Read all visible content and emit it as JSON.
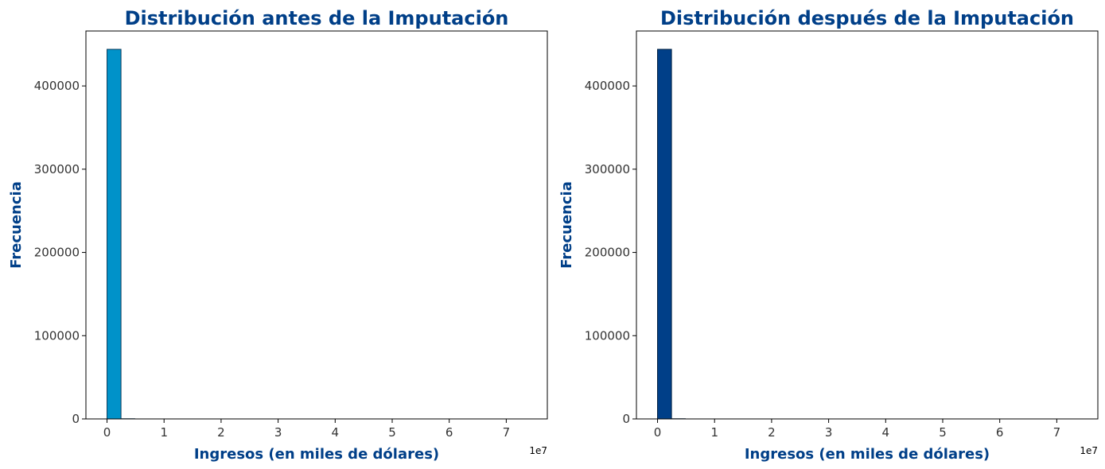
{
  "theme": {
    "title_color": "#003f88",
    "label_color": "#003f88",
    "tick_color": "#333333"
  },
  "chart_data": [
    {
      "type": "bar",
      "title": "Distribución antes de la Imputación",
      "xlabel": "Ingresos (en miles de dólares)",
      "ylabel": "Frecuencia",
      "x_offset_label": "1e7",
      "xlim": [
        -3700000,
        77200000
      ],
      "ylim": [
        0,
        466000
      ],
      "x_ticks": [
        0,
        10000000,
        20000000,
        30000000,
        40000000,
        50000000,
        60000000,
        70000000
      ],
      "x_tick_labels": [
        "0",
        "1",
        "2",
        "3",
        "4",
        "5",
        "6",
        "7"
      ],
      "y_ticks": [
        0,
        100000,
        200000,
        300000,
        400000
      ],
      "y_tick_labels": [
        "0",
        "100000",
        "200000",
        "300000",
        "400000"
      ],
      "bin_edges": [
        0,
        2450000,
        4900000,
        7350000,
        9800000,
        12250000,
        14700000,
        17150000,
        19600000,
        22050000,
        24500000,
        26950000,
        29400000,
        31850000,
        34300000,
        36750000,
        39200000,
        41650000,
        44100000,
        46550000,
        49000000,
        51450000,
        53900000,
        56350000,
        58800000,
        61250000,
        63700000,
        66150000,
        68600000,
        71050000,
        73500000
      ],
      "values": [
        444000,
        400,
        150,
        80,
        50,
        30,
        20,
        15,
        10,
        10,
        8,
        6,
        5,
        4,
        3,
        3,
        2,
        2,
        2,
        2,
        1,
        1,
        1,
        1,
        1,
        1,
        1,
        1,
        1,
        1
      ],
      "bar_color": "#0092c9",
      "edge_color": "#0b3b5c",
      "grid": false
    },
    {
      "type": "bar",
      "title": "Distribución después de la Imputación",
      "xlabel": "Ingresos (en miles de dólares)",
      "ylabel": "Frecuencia",
      "x_offset_label": "1e7",
      "xlim": [
        -3700000,
        77200000
      ],
      "ylim": [
        0,
        466000
      ],
      "x_ticks": [
        0,
        10000000,
        20000000,
        30000000,
        40000000,
        50000000,
        60000000,
        70000000
      ],
      "x_tick_labels": [
        "0",
        "1",
        "2",
        "3",
        "4",
        "5",
        "6",
        "7"
      ],
      "y_ticks": [
        0,
        100000,
        200000,
        300000,
        400000
      ],
      "y_tick_labels": [
        "0",
        "100000",
        "200000",
        "300000",
        "400000"
      ],
      "bin_edges": [
        0,
        2450000,
        4900000,
        7350000,
        9800000,
        12250000,
        14700000,
        17150000,
        19600000,
        22050000,
        24500000,
        26950000,
        29400000,
        31850000,
        34300000,
        36750000,
        39200000,
        41650000,
        44100000,
        46550000,
        49000000,
        51450000,
        53900000,
        56350000,
        58800000,
        61250000,
        63700000,
        66150000,
        68600000,
        71050000,
        73500000
      ],
      "values": [
        444000,
        400,
        150,
        80,
        50,
        30,
        20,
        15,
        10,
        10,
        8,
        6,
        5,
        4,
        3,
        3,
        2,
        2,
        2,
        2,
        1,
        1,
        1,
        1,
        1,
        1,
        1,
        1,
        1,
        1
      ],
      "bar_color": "#003f88",
      "edge_color": "#001f3f",
      "grid": false
    }
  ]
}
